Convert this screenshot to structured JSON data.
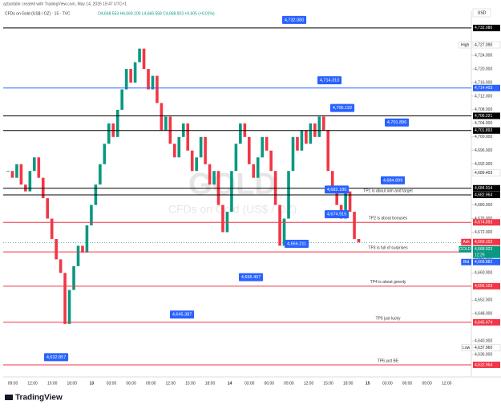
{
  "header": {
    "credit": "aztuntahir created with TradingView.com, May 14, 2026 19:47 UTC+1",
    "symbol": "CFDs on Gold (US$ / OZ) · 15 · TVC",
    "ohlc": "O4,668.553 H4,669.100 L4,666.558 C4,668.923 +0.605 (+0.01%)"
  },
  "footer": {
    "brand": "TradingView"
  },
  "chart_data": {
    "type": "candlestick",
    "watermark_symbol": "GOLD",
    "watermark_name": "CFDs on Gold (US$ / OZ)",
    "currency": "USD",
    "x_labels": [
      "09:00",
      "12:00",
      "15:00",
      "18:00",
      "13",
      "03:00",
      "06:00",
      "09:00",
      "12:00",
      "15:00",
      "18:00",
      "14",
      "03:00",
      "06:00",
      "09:00",
      "12:00",
      "15:00",
      "18:00",
      "15",
      "03:00",
      "06:00",
      "09:00",
      "12:00"
    ],
    "ylim": [
      4631.3,
      4737.0
    ],
    "yticks": [
      {
        "value": 4724,
        "label": "4,724.000"
      },
      {
        "value": 4720,
        "label": "4,720.000"
      },
      {
        "value": 4716,
        "label": "4,716.000"
      },
      {
        "value": 4712,
        "label": "4,712.000"
      },
      {
        "value": 4708,
        "label": "4,708.000"
      },
      {
        "value": 4704,
        "label": "4,704.000"
      },
      {
        "value": 4700,
        "label": "4,700.000"
      },
      {
        "value": 4696,
        "label": "4,696.000"
      },
      {
        "value": 4692,
        "label": "4,692.000"
      },
      {
        "value": 4680,
        "label": "4,680.000"
      },
      {
        "value": 4676,
        "label": "4,676.000"
      },
      {
        "value": 4672,
        "label": "4,672.000"
      },
      {
        "value": 4664,
        "label": "4,664.000"
      },
      {
        "value": 4660,
        "label": "4,660.000"
      },
      {
        "value": 4652,
        "label": "4,652.000"
      },
      {
        "value": 4648,
        "label": "4,648.000"
      },
      {
        "value": 4640,
        "label": "4,640.000"
      },
      {
        "value": 4636,
        "label": "4,636.000"
      }
    ],
    "values": [
      4690,
      4688,
      4692,
      4686,
      4684,
      4690,
      4694,
      4688,
      4682,
      4676,
      4670,
      4664,
      4660,
      4645,
      4655,
      4662,
      4668,
      4666,
      4674,
      4680,
      4686,
      4692,
      4698,
      4704,
      4700,
      4708,
      4714,
      4720,
      4716,
      4722,
      4726,
      4720,
      4714,
      4718,
      4710,
      4702,
      4706,
      4698,
      4694,
      4700,
      4704,
      4696,
      4690,
      4694,
      4700,
      4692,
      4686,
      4690,
      4680,
      4672,
      4678,
      4690,
      4698,
      4704,
      4700,
      4692,
      4688,
      4694,
      4700,
      4696,
      4690,
      4680,
      4668,
      4676,
      4690,
      4700,
      4696,
      4702,
      4698,
      4704,
      4700,
      4706,
      4702,
      4690,
      4684,
      4680,
      4676,
      4684,
      4678,
      4670,
      4669
    ],
    "up_color": "#089981",
    "down_color": "#f23645",
    "levels": [
      {
        "value": 4732.08,
        "label": "4,732.080",
        "color": "#000000"
      },
      {
        "value": 4714.403,
        "label": "4,714.403",
        "color": "#2962ff"
      },
      {
        "value": 4706.221,
        "label": "4,706.221",
        "color": "#000000"
      },
      {
        "value": 4701.893,
        "label": "4,701.893",
        "color": "#000000"
      },
      {
        "value": 4684.914,
        "label": "4,684.914",
        "color": "#000000"
      },
      {
        "value": 4682.964,
        "label": "4,682.964",
        "color": "#000000",
        "note": "TP1 is about aim and target"
      },
      {
        "value": 4674.893,
        "label": "4,674.893",
        "color": "#f23645",
        "note": "TP2 is about bonuses"
      },
      {
        "value": 4666.198,
        "label": "4,666.198",
        "color": "#f23645",
        "note": "TP3 is full of surprises"
      },
      {
        "value": 4656.103,
        "label": "4,656.103",
        "color": "#f23645",
        "note": "TP4 is about greedy"
      },
      {
        "value": 4645.474,
        "label": "4,645.474",
        "color": "#f23645",
        "note": "TP5 just lucky"
      },
      {
        "value": 4632.964,
        "label": "4,632.964",
        "color": "#f23645",
        "note": "TP6 just BE"
      }
    ],
    "callouts": [
      {
        "value": 4732.08,
        "label": "4,732.080"
      },
      {
        "value": 4714.31,
        "label": "4,714.310"
      },
      {
        "value": 4706.192,
        "label": "4,706.192"
      },
      {
        "value": 4701.896,
        "label": "4,701.896"
      },
      {
        "value": 4684.899,
        "label": "4,684.899"
      },
      {
        "value": 4682.18,
        "label": "4,682.180"
      },
      {
        "value": 4674.915,
        "label": "4,674.915"
      },
      {
        "value": 4666.211,
        "label": "4,666.211"
      },
      {
        "value": 4656.407,
        "label": "4,656.407"
      },
      {
        "value": 4645.387,
        "label": "4,645.387"
      },
      {
        "value": 4632.857,
        "label": "4,632.857"
      }
    ],
    "price_tags": [
      {
        "name": "High",
        "value": 4727.09,
        "label": "4,727.090",
        "color": "#ffffff"
      },
      {
        "value": 4689.403,
        "label": "4,689.403",
        "color": "#ffffff"
      },
      {
        "name": "Ask",
        "value": 4669.103,
        "label": "4,669.103",
        "color": "#f23645"
      },
      {
        "name": "GOLD",
        "value": 4668.923,
        "label": "4,668.923",
        "color": "#089981"
      },
      {
        "name": "Bid",
        "value": 4668.882,
        "label": "4,668.882",
        "color": "#2962ff"
      },
      {
        "name": "Low",
        "value": 4637.96,
        "label": "4,637.960",
        "color": "#ffffff"
      }
    ],
    "countdown": "12:29"
  }
}
